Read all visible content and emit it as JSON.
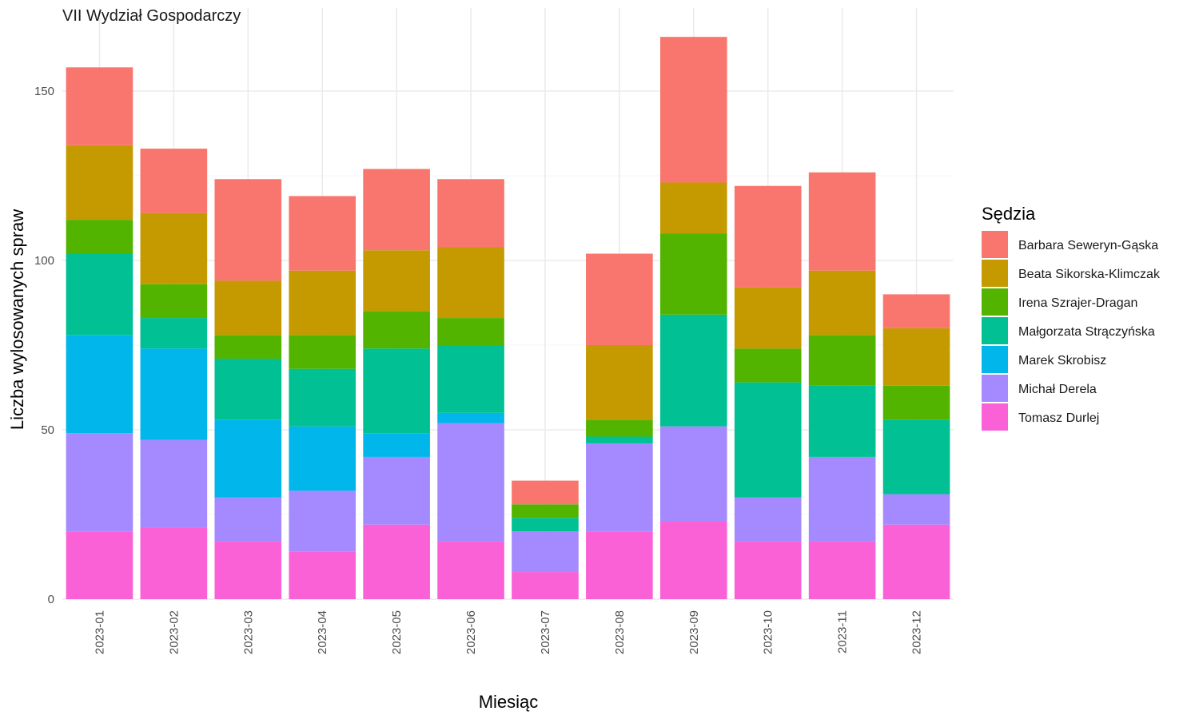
{
  "chart_data": {
    "type": "bar",
    "stacked": true,
    "title": "VII Wydział Gospodarczy",
    "xlabel": "Miesiąc",
    "ylabel": "Liczba wylosowanych spraw",
    "ylim": [
      0,
      170
    ],
    "yticks": [
      0,
      50,
      100,
      150
    ],
    "grid": true,
    "legend": {
      "title": "Sędzia",
      "placement": "right"
    },
    "categories": [
      "2023-01",
      "2023-02",
      "2023-03",
      "2023-04",
      "2023-05",
      "2023-06",
      "2023-07",
      "2023-08",
      "2023-09",
      "2023-10",
      "2023-11",
      "2023-12"
    ],
    "series": [
      {
        "name": "Barbara Seweryn-Gąska",
        "color": "#F8766D",
        "values": [
          23,
          19,
          30,
          22,
          24,
          20,
          7,
          27,
          43,
          30,
          29,
          10
        ]
      },
      {
        "name": "Beata Sikorska-Klimczak",
        "color": "#C49A00",
        "values": [
          22,
          21,
          16,
          19,
          18,
          21,
          0,
          22,
          15,
          18,
          19,
          17
        ]
      },
      {
        "name": "Irena Szrajer-Dragan",
        "color": "#53B400",
        "values": [
          10,
          10,
          7,
          10,
          11,
          8,
          4,
          5,
          24,
          10,
          15,
          10
        ]
      },
      {
        "name": "Małgorzata Strączyńska",
        "color": "#00C094",
        "values": [
          24,
          9,
          18,
          17,
          25,
          20,
          4,
          2,
          33,
          34,
          21,
          22
        ]
      },
      {
        "name": "Marek Skrobisz",
        "color": "#00B6EB",
        "values": [
          29,
          27,
          23,
          19,
          7,
          3,
          0,
          0,
          0,
          0,
          0,
          0
        ]
      },
      {
        "name": "Michał Derela",
        "color": "#A58AFF",
        "values": [
          29,
          26,
          13,
          18,
          20,
          35,
          12,
          26,
          28,
          13,
          25,
          9
        ]
      },
      {
        "name": "Tomasz Durlej",
        "color": "#FB61D7",
        "values": [
          20,
          21,
          17,
          14,
          22,
          17,
          8,
          20,
          23,
          17,
          17,
          22
        ]
      }
    ]
  }
}
